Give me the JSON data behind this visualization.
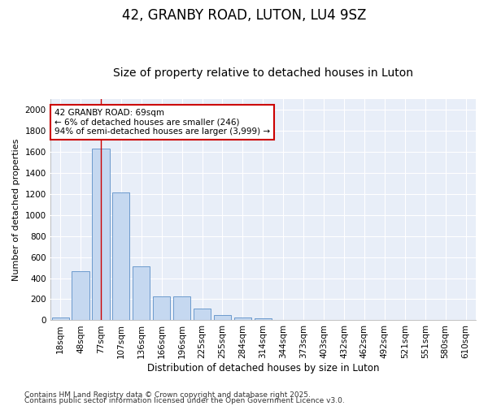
{
  "title1": "42, GRANBY ROAD, LUTON, LU4 9SZ",
  "title2": "Size of property relative to detached houses in Luton",
  "xlabel": "Distribution of detached houses by size in Luton",
  "ylabel": "Number of detached properties",
  "categories": [
    "18sqm",
    "48sqm",
    "77sqm",
    "107sqm",
    "136sqm",
    "166sqm",
    "196sqm",
    "225sqm",
    "255sqm",
    "284sqm",
    "314sqm",
    "344sqm",
    "373sqm",
    "403sqm",
    "432sqm",
    "462sqm",
    "492sqm",
    "521sqm",
    "551sqm",
    "580sqm",
    "610sqm"
  ],
  "values": [
    30,
    465,
    1630,
    1210,
    510,
    225,
    225,
    115,
    50,
    30,
    20,
    0,
    0,
    0,
    0,
    0,
    0,
    0,
    0,
    0,
    0
  ],
  "bar_color": "#c5d8f0",
  "bar_edge_color": "#5b8fc7",
  "plot_bg_color": "#e8eef8",
  "fig_bg_color": "#ffffff",
  "grid_color": "#ffffff",
  "vline_x": 2,
  "vline_color": "#cc0000",
  "annotation_text": "42 GRANBY ROAD: 69sqm\n← 6% of detached houses are smaller (246)\n94% of semi-detached houses are larger (3,999) →",
  "annotation_box_color": "#ffffff",
  "annotation_box_edge": "#cc0000",
  "ylim": [
    0,
    2100
  ],
  "yticks": [
    0,
    200,
    400,
    600,
    800,
    1000,
    1200,
    1400,
    1600,
    1800,
    2000
  ],
  "footer1": "Contains HM Land Registry data © Crown copyright and database right 2025.",
  "footer2": "Contains public sector information licensed under the Open Government Licence v3.0.",
  "title1_fontsize": 12,
  "title2_fontsize": 10,
  "xlabel_fontsize": 8.5,
  "ylabel_fontsize": 8,
  "tick_fontsize": 7.5,
  "annotation_fontsize": 7.5,
  "footer_fontsize": 6.5
}
